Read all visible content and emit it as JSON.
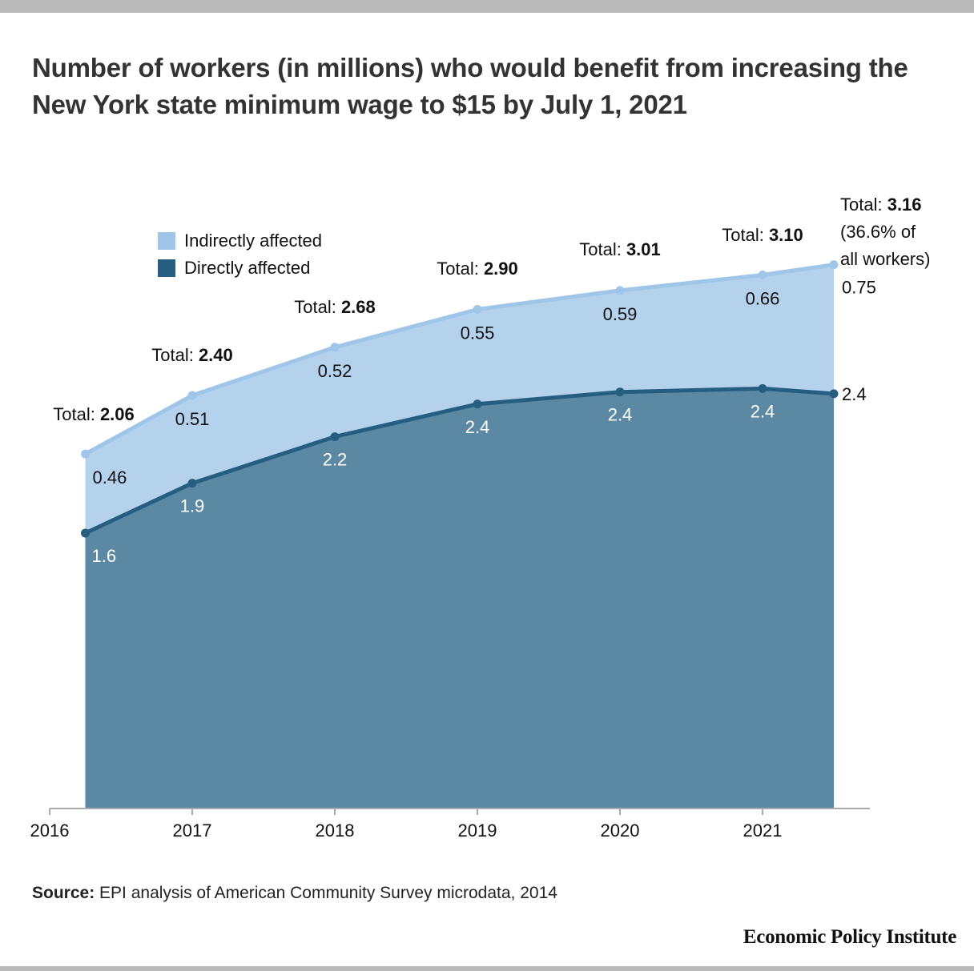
{
  "title": "Number of workers (in millions) who would benefit from increasing the New York state minimum wage to $15 by July 1, 2021",
  "source_label": "Source:",
  "source_text": " EPI analysis of American Community Survey microdata, 2014",
  "brand": "Economic Policy Institute",
  "colors": {
    "indirect_fill": "#b4d2ec",
    "indirect_line": "#9fc5e8",
    "direct_fill": "#5b88a2",
    "direct_line": "#265e82",
    "axis": "#aaaaaa"
  },
  "legend": [
    {
      "label": "Indirectly affected",
      "color": "#9fc5e8"
    },
    {
      "label": "Directly affected",
      "color": "#265e82"
    }
  ],
  "chart_data": {
    "type": "area",
    "stacked": true,
    "title": "Number of workers (in millions) who would benefit from increasing the New York state minimum wage to $15 by July 1, 2021",
    "xlabel": "",
    "ylabel": "",
    "x": [
      2016.25,
      2017,
      2018,
      2019,
      2020,
      2021,
      2021.5
    ],
    "xlim": [
      2016,
      2021.75
    ],
    "ylim": [
      0,
      3.16
    ],
    "x_ticks": [
      "2016",
      "2017",
      "2018",
      "2019",
      "2020",
      "2021"
    ],
    "x_tick_values": [
      2016,
      2017,
      2018,
      2019,
      2020,
      2021
    ],
    "grid": false,
    "legend_position": "top-left",
    "series": [
      {
        "name": "Directly affected",
        "values": [
          1.6,
          1.89,
          2.16,
          2.35,
          2.42,
          2.44,
          2.41
        ],
        "labels": [
          "1.6",
          "1.9",
          "2.2",
          "2.4",
          "2.4",
          "2.4",
          "2.4"
        ]
      },
      {
        "name": "Indirectly affected",
        "values": [
          0.46,
          0.51,
          0.52,
          0.55,
          0.59,
          0.66,
          0.75
        ],
        "labels": [
          "0.46",
          "0.51",
          "0.52",
          "0.55",
          "0.59",
          "0.66",
          "0.75"
        ]
      }
    ],
    "totals": [
      2.06,
      2.4,
      2.68,
      2.9,
      3.01,
      3.1,
      3.16
    ],
    "total_labels": {
      "prefix": "Total: ",
      "values": [
        "2.06",
        "2.40",
        "2.68",
        "2.90",
        "3.01",
        "3.10",
        "3.16"
      ]
    },
    "annotations": [
      "(36.6% of",
      "all workers)"
    ]
  }
}
